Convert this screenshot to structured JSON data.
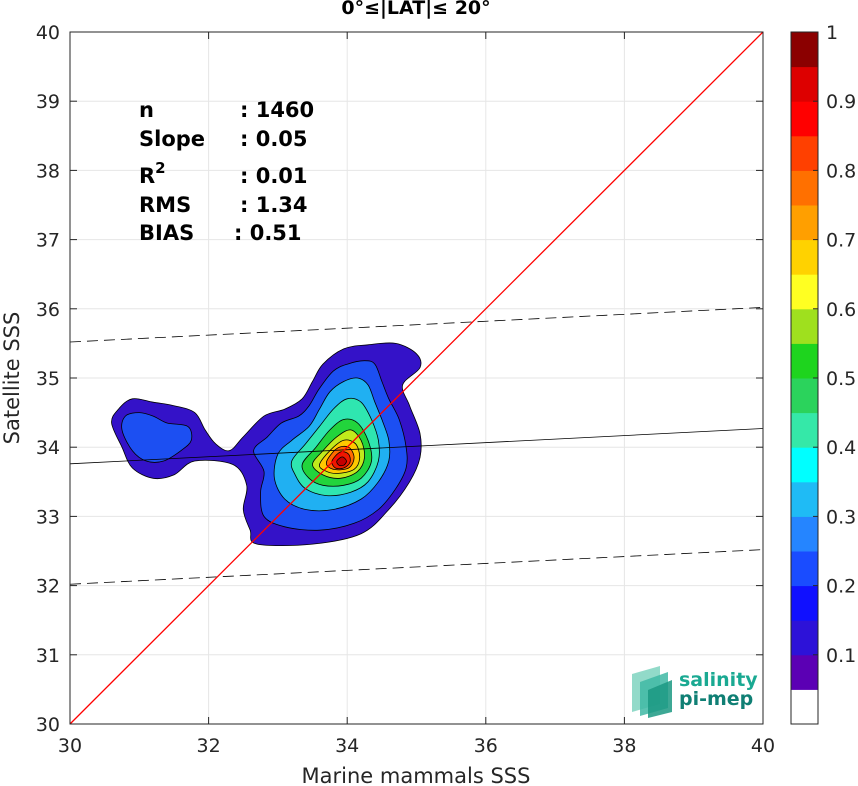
{
  "chart_data": {
    "type": "heatmap",
    "title": "0°≤|LAT|≤ 20°",
    "xlabel": "Marine mammals SSS",
    "ylabel": "Satellite SSS",
    "xlim": [
      30,
      40
    ],
    "ylim": [
      30,
      40
    ],
    "xticks": [
      30,
      32,
      34,
      36,
      38,
      40
    ],
    "yticks": [
      30,
      31,
      32,
      33,
      34,
      35,
      36,
      37,
      38,
      39,
      40
    ],
    "grid": true,
    "stats": [
      {
        "label": "n",
        "value": ": 1460"
      },
      {
        "label": "Slope",
        "value": ": 0.05"
      },
      {
        "label": "R",
        "sup": "2",
        "value": ": 0.01"
      },
      {
        "label": "RMS",
        "value": ": 1.34"
      },
      {
        "label": "BIAS",
        "value": ": 0.51"
      }
    ],
    "one_to_one_line": {
      "x": [
        30,
        40
      ],
      "y": [
        30,
        40
      ],
      "color": "#ff0000"
    },
    "fit_line": {
      "x": [
        30,
        40
      ],
      "y": [
        33.76,
        34.27
      ]
    },
    "fit_bounds": [
      {
        "x": [
          30,
          40
        ],
        "y": [
          35.52,
          36.02
        ]
      },
      {
        "x": [
          30,
          40
        ],
        "y": [
          32.02,
          32.52
        ]
      }
    ],
    "colorbar": {
      "min": 0,
      "max": 1,
      "ticks": [
        0.1,
        0.2,
        0.3,
        0.4,
        0.5,
        0.6,
        0.7,
        0.8,
        0.9,
        1
      ],
      "tick_labels": [
        "0.1",
        "0.2",
        "0.3",
        "0.4",
        "0.5",
        "0.6",
        "0.7",
        "0.8",
        "0.9",
        "1"
      ],
      "colors": [
        "#ffffff",
        "#5b00b4",
        "#2d12d8",
        "#1010ff",
        "#1a4cff",
        "#2585ff",
        "#1fbbf5",
        "#00ffff",
        "#35e8a8",
        "#2bd35c",
        "#1ed41e",
        "#9fe01e",
        "#ffff22",
        "#ffd200",
        "#ff9f00",
        "#ff7000",
        "#ff4000",
        "#ff0000",
        "#dd0000",
        "#8b0000"
      ]
    },
    "contours": [
      {
        "level": 0.05,
        "points": [
          [
            30.6,
            34.35
          ],
          [
            30.7,
            34.55
          ],
          [
            30.9,
            34.7
          ],
          [
            31.2,
            34.65
          ],
          [
            31.5,
            34.6
          ],
          [
            31.8,
            34.5
          ],
          [
            31.95,
            34.25
          ],
          [
            32.1,
            34.05
          ],
          [
            32.3,
            33.95
          ],
          [
            32.5,
            34.15
          ],
          [
            32.8,
            34.45
          ],
          [
            33.1,
            34.55
          ],
          [
            33.35,
            34.7
          ],
          [
            33.5,
            34.95
          ],
          [
            33.65,
            35.2
          ],
          [
            33.95,
            35.42
          ],
          [
            34.3,
            35.48
          ],
          [
            34.7,
            35.5
          ],
          [
            35.0,
            35.35
          ],
          [
            35.05,
            35.15
          ],
          [
            34.8,
            34.9
          ],
          [
            34.9,
            34.6
          ],
          [
            35.05,
            34.2
          ],
          [
            35.05,
            33.85
          ],
          [
            34.9,
            33.5
          ],
          [
            34.6,
            33.1
          ],
          [
            34.2,
            32.75
          ],
          [
            33.5,
            32.6
          ],
          [
            32.7,
            32.6
          ],
          [
            32.6,
            32.8
          ],
          [
            32.5,
            33.1
          ],
          [
            32.55,
            33.45
          ],
          [
            32.35,
            33.75
          ],
          [
            31.8,
            33.8
          ],
          [
            31.5,
            33.6
          ],
          [
            31.2,
            33.55
          ],
          [
            30.9,
            33.7
          ],
          [
            30.75,
            34.0
          ]
        ]
      },
      {
        "level": 0.2,
        "points": [
          [
            30.75,
            34.25
          ],
          [
            30.8,
            34.45
          ],
          [
            31.0,
            34.5
          ],
          [
            31.2,
            34.45
          ],
          [
            31.4,
            34.35
          ],
          [
            31.7,
            34.3
          ],
          [
            31.75,
            34.1
          ],
          [
            31.6,
            33.95
          ],
          [
            31.35,
            33.8
          ],
          [
            31.1,
            33.8
          ],
          [
            30.9,
            33.95
          ]
        ]
      },
      {
        "level": 0.2,
        "points": [
          [
            32.65,
            33.95
          ],
          [
            32.85,
            34.15
          ],
          [
            33.05,
            34.35
          ],
          [
            33.3,
            34.45
          ],
          [
            33.45,
            34.6
          ],
          [
            33.6,
            34.85
          ],
          [
            33.8,
            35.1
          ],
          [
            34.0,
            35.2
          ],
          [
            34.25,
            35.25
          ],
          [
            34.4,
            35.2
          ],
          [
            34.5,
            34.95
          ],
          [
            34.6,
            34.7
          ],
          [
            34.75,
            34.4
          ],
          [
            34.85,
            34.0
          ],
          [
            34.85,
            33.7
          ],
          [
            34.7,
            33.4
          ],
          [
            34.45,
            33.1
          ],
          [
            34.1,
            32.9
          ],
          [
            33.6,
            32.8
          ],
          [
            33.1,
            32.85
          ],
          [
            32.8,
            33.0
          ],
          [
            32.75,
            33.35
          ],
          [
            32.8,
            33.65
          ]
        ]
      },
      {
        "level": 0.3,
        "points": [
          [
            33.0,
            33.9
          ],
          [
            33.2,
            34.1
          ],
          [
            33.45,
            34.3
          ],
          [
            33.6,
            34.55
          ],
          [
            33.75,
            34.8
          ],
          [
            33.95,
            34.95
          ],
          [
            34.15,
            35.0
          ],
          [
            34.3,
            34.9
          ],
          [
            34.4,
            34.65
          ],
          [
            34.5,
            34.4
          ],
          [
            34.6,
            34.1
          ],
          [
            34.6,
            33.8
          ],
          [
            34.45,
            33.5
          ],
          [
            34.2,
            33.25
          ],
          [
            33.8,
            33.1
          ],
          [
            33.4,
            33.1
          ],
          [
            33.1,
            33.25
          ],
          [
            32.95,
            33.55
          ]
        ]
      },
      {
        "level": 0.4,
        "points": [
          [
            33.2,
            33.8
          ],
          [
            33.4,
            34.05
          ],
          [
            33.6,
            34.3
          ],
          [
            33.8,
            34.55
          ],
          [
            34.0,
            34.7
          ],
          [
            34.2,
            34.65
          ],
          [
            34.35,
            34.4
          ],
          [
            34.45,
            34.1
          ],
          [
            34.45,
            33.8
          ],
          [
            34.3,
            33.5
          ],
          [
            34.05,
            33.35
          ],
          [
            33.7,
            33.3
          ],
          [
            33.4,
            33.4
          ],
          [
            33.25,
            33.6
          ]
        ]
      },
      {
        "level": 0.5,
        "points": [
          [
            33.35,
            33.75
          ],
          [
            33.55,
            34.0
          ],
          [
            33.75,
            34.25
          ],
          [
            33.95,
            34.4
          ],
          [
            34.15,
            34.35
          ],
          [
            34.3,
            34.1
          ],
          [
            34.35,
            33.8
          ],
          [
            34.2,
            33.55
          ],
          [
            33.95,
            33.45
          ],
          [
            33.65,
            33.45
          ],
          [
            33.45,
            33.55
          ]
        ]
      },
      {
        "level": 0.6,
        "points": [
          [
            33.5,
            33.75
          ],
          [
            33.65,
            33.95
          ],
          [
            33.85,
            34.15
          ],
          [
            34.05,
            34.25
          ],
          [
            34.2,
            34.1
          ],
          [
            34.25,
            33.85
          ],
          [
            34.15,
            33.65
          ],
          [
            33.9,
            33.55
          ],
          [
            33.65,
            33.6
          ]
        ]
      },
      {
        "level": 0.7,
        "points": [
          [
            33.6,
            33.75
          ],
          [
            33.75,
            33.95
          ],
          [
            33.95,
            34.1
          ],
          [
            34.12,
            34.05
          ],
          [
            34.18,
            33.85
          ],
          [
            34.1,
            33.68
          ],
          [
            33.85,
            33.62
          ],
          [
            33.68,
            33.66
          ]
        ]
      },
      {
        "level": 0.8,
        "points": [
          [
            33.7,
            33.78
          ],
          [
            33.85,
            33.98
          ],
          [
            34.02,
            34.0
          ],
          [
            34.1,
            33.85
          ],
          [
            34.02,
            33.7
          ],
          [
            33.8,
            33.68
          ]
        ]
      },
      {
        "level": 0.9,
        "points": [
          [
            33.78,
            33.8
          ],
          [
            33.9,
            33.93
          ],
          [
            34.02,
            33.9
          ],
          [
            34.04,
            33.78
          ],
          [
            33.95,
            33.7
          ],
          [
            33.83,
            33.7
          ]
        ]
      },
      {
        "level": 1.0,
        "points": [
          [
            33.85,
            33.8
          ],
          [
            33.93,
            33.86
          ],
          [
            33.99,
            33.8
          ],
          [
            33.95,
            33.74
          ],
          [
            33.88,
            33.74
          ]
        ]
      }
    ],
    "watermark": {
      "line1": "salinity",
      "line2": "pi-mep"
    }
  }
}
